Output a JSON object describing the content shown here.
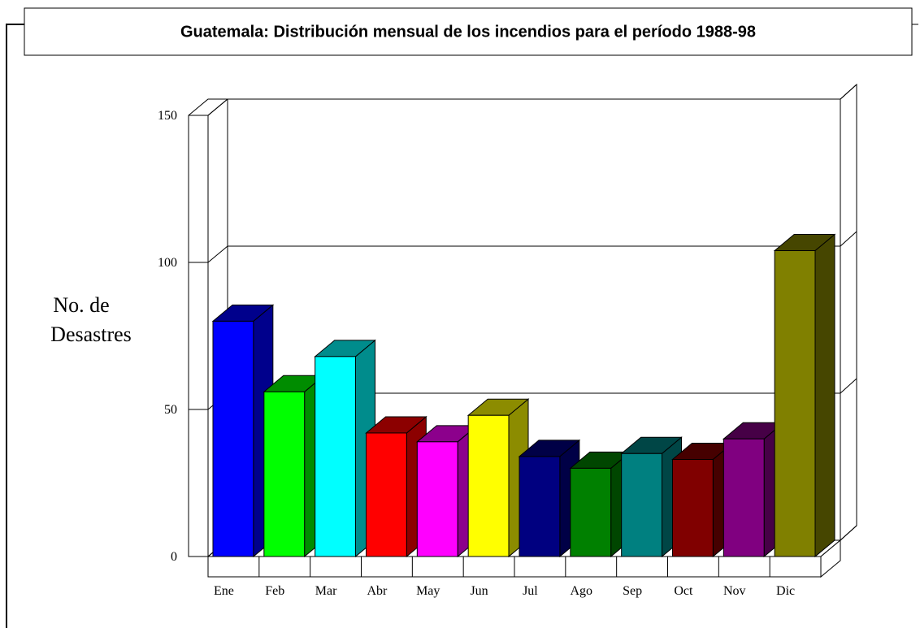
{
  "chart_data": {
    "type": "bar3d",
    "title": "Guatemala: Distribución mensual de los incendios para el período 1988-98",
    "ylabel": [
      "No. de",
      "Desastres"
    ],
    "categories": [
      "Ene",
      "Feb",
      "Mar",
      "Abr",
      "May",
      "Jun",
      "Jul",
      "Ago",
      "Sep",
      "Oct",
      "Nov",
      "Dic"
    ],
    "values": [
      80,
      56,
      68,
      42,
      39,
      48,
      34,
      30,
      35,
      33,
      40,
      104
    ],
    "colors": [
      "#0000ff",
      "#00ff00",
      "#00ffff",
      "#ff0000",
      "#ff00ff",
      "#ffff00",
      "#000080",
      "#008000",
      "#008080",
      "#800000",
      "#800080",
      "#808000"
    ],
    "ylim": [
      0,
      150
    ],
    "yticks": [
      0,
      50,
      100,
      150
    ],
    "grid": true
  }
}
